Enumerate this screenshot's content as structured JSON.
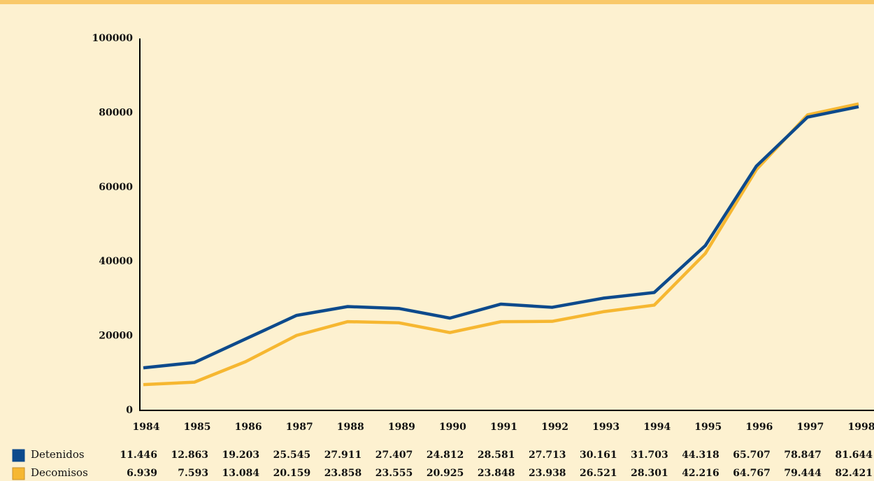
{
  "chart_data": {
    "type": "line",
    "categories": [
      "1984",
      "1985",
      "1986",
      "1987",
      "1988",
      "1989",
      "1990",
      "1991",
      "1992",
      "1993",
      "1994",
      "1995",
      "1996",
      "1997",
      "1998"
    ],
    "series": [
      {
        "name": "Detenidos",
        "color": "#0d4a8c",
        "values": [
          11446,
          12863,
          19203,
          25545,
          27911,
          27407,
          24812,
          28581,
          27713,
          30161,
          31703,
          44318,
          65707,
          78847,
          81644
        ],
        "value_labels": [
          "11.446",
          "12.863",
          "19.203",
          "25.545",
          "27.911",
          "27.407",
          "24.812",
          "28.581",
          "27.713",
          "30.161",
          "31.703",
          "44.318",
          "65.707",
          "78.847",
          "81.644"
        ]
      },
      {
        "name": "Decomisos",
        "color": "#f6b731",
        "values": [
          6939,
          7593,
          13084,
          20159,
          23858,
          23555,
          20925,
          23848,
          23938,
          26521,
          28301,
          42216,
          64767,
          79444,
          82421
        ],
        "value_labels": [
          "6.939",
          "7.593",
          "13.084",
          "20.159",
          "23.858",
          "23.555",
          "20.925",
          "23.848",
          "23.938",
          "26.521",
          "28.301",
          "42.216",
          "64.767",
          "79.444",
          "82.421"
        ]
      }
    ],
    "ylim": [
      0,
      100000
    ],
    "yticks": [
      0,
      20000,
      40000,
      60000,
      80000,
      100000
    ],
    "grid": false
  }
}
